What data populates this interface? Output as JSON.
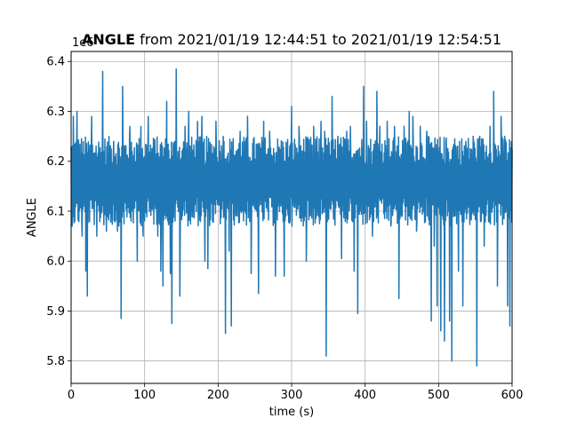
{
  "chart_data": {
    "type": "line",
    "title_bold": "ANGLE",
    "title_rest": " from 2021/01/19 12:44:51 to 2021/01/19 12:54:51",
    "offset_label": "1e6",
    "xlabel": "time (s)",
    "ylabel": "ANGLE",
    "xlim": [
      0,
      600
    ],
    "ylim": [
      5.755,
      6.42
    ],
    "x_ticks": [
      0,
      100,
      200,
      300,
      400,
      500,
      600
    ],
    "y_ticks": [
      5.8,
      5.9,
      6.0,
      6.1,
      6.2,
      6.3,
      6.4
    ],
    "y_tick_labels": [
      "5.8",
      "5.9",
      "6.0",
      "6.1",
      "6.2",
      "6.3",
      "6.4"
    ],
    "grid": true,
    "line_color": "#1f77b4",
    "series": [
      {
        "x_start": 0,
        "x_end": 600,
        "baseline": 6.16,
        "band_halfwidth": 0.09,
        "spikes": [
          [
            3,
            6.29
          ],
          [
            8,
            6.3
          ],
          [
            15,
            6.05
          ],
          [
            20,
            5.98
          ],
          [
            22,
            5.93
          ],
          [
            28,
            6.29
          ],
          [
            35,
            6.05
          ],
          [
            43,
            6.38
          ],
          [
            48,
            6.06
          ],
          [
            58,
            6.24
          ],
          [
            63,
            6.06
          ],
          [
            68,
            5.885
          ],
          [
            70,
            6.35
          ],
          [
            80,
            6.27
          ],
          [
            90,
            6.0
          ],
          [
            95,
            6.27
          ],
          [
            98,
            6.05
          ],
          [
            105,
            6.29
          ],
          [
            118,
            6.05
          ],
          [
            122,
            5.98
          ],
          [
            125,
            5.95
          ],
          [
            130,
            6.32
          ],
          [
            135,
            5.975
          ],
          [
            137,
            5.875
          ],
          [
            143,
            6.385
          ],
          [
            148,
            5.93
          ],
          [
            155,
            6.27
          ],
          [
            160,
            6.3
          ],
          [
            172,
            6.28
          ],
          [
            178,
            6.29
          ],
          [
            182,
            6.0
          ],
          [
            186,
            5.985
          ],
          [
            197,
            6.28
          ],
          [
            207,
            6.25
          ],
          [
            210,
            5.855
          ],
          [
            215,
            6.02
          ],
          [
            218,
            5.87
          ],
          [
            230,
            6.26
          ],
          [
            240,
            6.29
          ],
          [
            245,
            5.975
          ],
          [
            255,
            5.935
          ],
          [
            262,
            6.28
          ],
          [
            270,
            6.26
          ],
          [
            278,
            5.97
          ],
          [
            290,
            5.97
          ],
          [
            300,
            6.31
          ],
          [
            310,
            6.27
          ],
          [
            320,
            6.0
          ],
          [
            330,
            6.27
          ],
          [
            340,
            6.28
          ],
          [
            345,
            6.26
          ],
          [
            347,
            5.81
          ],
          [
            355,
            6.33
          ],
          [
            363,
            6.25
          ],
          [
            368,
            6.005
          ],
          [
            375,
            6.26
          ],
          [
            380,
            6.27
          ],
          [
            385,
            5.98
          ],
          [
            390,
            5.895
          ],
          [
            398,
            6.35
          ],
          [
            402,
            6.28
          ],
          [
            410,
            6.05
          ],
          [
            416,
            6.34
          ],
          [
            420,
            6.27
          ],
          [
            430,
            6.28
          ],
          [
            435,
            6.07
          ],
          [
            440,
            6.27
          ],
          [
            446,
            5.925
          ],
          [
            453,
            6.27
          ],
          [
            460,
            6.3
          ],
          [
            465,
            6.29
          ],
          [
            470,
            6.06
          ],
          [
            475,
            6.27
          ],
          [
            484,
            6.26
          ],
          [
            490,
            5.88
          ],
          [
            494,
            6.03
          ],
          [
            498,
            5.91
          ],
          [
            500,
            6.22
          ],
          [
            503,
            5.86
          ],
          [
            508,
            5.84
          ],
          [
            510,
            6.24
          ],
          [
            515,
            5.88
          ],
          [
            518,
            5.8
          ],
          [
            522,
            6.245
          ],
          [
            527,
            5.98
          ],
          [
            533,
            5.91
          ],
          [
            537,
            6.24
          ],
          [
            542,
            6.1
          ],
          [
            547,
            6.25
          ],
          [
            552,
            5.79
          ],
          [
            556,
            6.25
          ],
          [
            562,
            6.03
          ],
          [
            566,
            6.21
          ],
          [
            570,
            6.27
          ],
          [
            575,
            6.34
          ],
          [
            580,
            5.95
          ],
          [
            585,
            6.29
          ],
          [
            590,
            6.25
          ],
          [
            594,
            5.91
          ],
          [
            597,
            5.87
          ]
        ]
      }
    ]
  }
}
